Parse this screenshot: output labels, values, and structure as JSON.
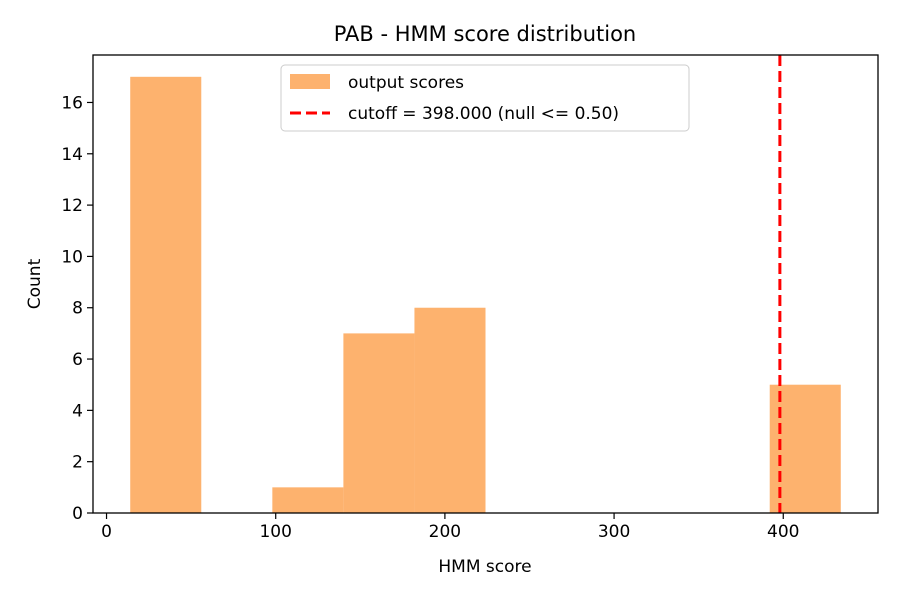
{
  "chart_data": {
    "type": "bar",
    "title": "PAB - HMM score distribution",
    "xlabel": "HMM score",
    "ylabel": "Count",
    "xlim": [
      -8,
      456
    ],
    "ylim": [
      0,
      17.85
    ],
    "xticks": [
      0,
      100,
      200,
      300,
      400
    ],
    "yticks": [
      0,
      2,
      4,
      6,
      8,
      10,
      12,
      14,
      16
    ],
    "bins": [
      {
        "x0": 14,
        "x1": 56,
        "count": 17
      },
      {
        "x0": 56,
        "x1": 98,
        "count": 0
      },
      {
        "x0": 98,
        "x1": 140,
        "count": 1
      },
      {
        "x0": 140,
        "x1": 182,
        "count": 7
      },
      {
        "x0": 182,
        "x1": 224,
        "count": 8
      },
      {
        "x0": 224,
        "x1": 266,
        "count": 0
      },
      {
        "x0": 266,
        "x1": 308,
        "count": 0
      },
      {
        "x0": 308,
        "x1": 350,
        "count": 0
      },
      {
        "x0": 350,
        "x1": 392,
        "count": 0
      },
      {
        "x0": 392,
        "x1": 434,
        "count": 5
      }
    ],
    "bar_color": "#fdb26e",
    "cutoff": {
      "value": 398,
      "color": "#ff0000",
      "style": "dashed"
    },
    "legend": {
      "position": "top-center",
      "entries": [
        {
          "label": "output scores",
          "kind": "patch",
          "color": "#fdb26e"
        },
        {
          "label": "cutoff = 398.000 (null <= 0.50)",
          "kind": "dashed-line",
          "color": "#ff0000"
        }
      ]
    },
    "grid": false
  }
}
